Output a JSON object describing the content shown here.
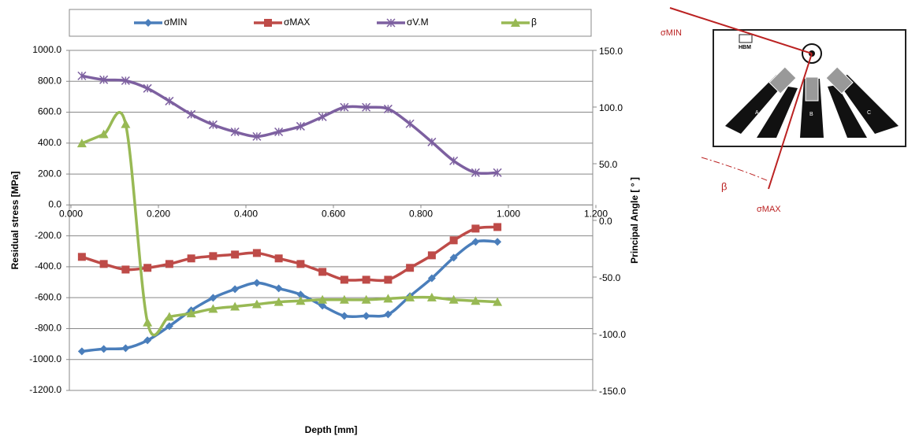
{
  "chart_data": {
    "type": "line",
    "ylabel": "Residual stress [MPa]",
    "y2label": "Principal Angle [ ° ]",
    "xlabel": "Depth [mm]",
    "x": [
      0.025,
      0.075,
      0.125,
      0.175,
      0.225,
      0.275,
      0.325,
      0.375,
      0.425,
      0.475,
      0.525,
      0.575,
      0.625,
      0.675,
      0.725,
      0.775,
      0.825,
      0.875,
      0.925,
      0.975
    ],
    "series": [
      {
        "name": "σMIN",
        "color": "#4a7ebb",
        "marker": "diamond",
        "values": [
          -947,
          -932,
          -927,
          -876,
          -784,
          -682,
          -601,
          -545,
          -504,
          -540,
          -580,
          -652,
          -718,
          -718,
          -708,
          -590,
          -474,
          -341,
          -239,
          -239
        ]
      },
      {
        "name": "σMAX",
        "color": "#be4b48",
        "marker": "square",
        "values": [
          -336,
          -382,
          -418,
          -407,
          -382,
          -346,
          -331,
          -321,
          -311,
          -346,
          -382,
          -433,
          -484,
          -484,
          -484,
          -407,
          -326,
          -229,
          -153,
          -143
        ]
      },
      {
        "name": "σV.M",
        "color": "#7d60a0",
        "marker": "cross",
        "values": [
          835,
          810,
          804,
          754,
          672,
          586,
          519,
          473,
          443,
          473,
          509,
          570,
          632,
          632,
          621,
          525,
          407,
          285,
          209,
          209
        ]
      },
      {
        "name": "β",
        "color": "#98b954",
        "marker": "triangle",
        "axis": "y2",
        "values": [
          68,
          76,
          85,
          -90,
          -85,
          -82,
          -78,
          -76,
          -74,
          -72,
          -71,
          -70,
          -70,
          -70,
          -69,
          -68,
          -68,
          -70,
          -71,
          -72
        ]
      }
    ],
    "xlim": [
      0,
      1.2
    ],
    "xticks": [
      {
        "value": 0,
        "label": "0.000"
      },
      {
        "value": 0.2,
        "label": "0.200"
      },
      {
        "value": 0.4,
        "label": "0.400"
      },
      {
        "value": 0.6,
        "label": "0.600"
      },
      {
        "value": 0.8,
        "label": "0.800"
      },
      {
        "value": 1,
        "label": "1.000"
      },
      {
        "value": 1.2,
        "label": "1.200"
      }
    ],
    "ylim": [
      -1200,
      1000
    ],
    "yticks": [
      {
        "value": 1000,
        "label": "1000.0"
      },
      {
        "value": 800,
        "label": "800.0"
      },
      {
        "value": 600,
        "label": "600.0"
      },
      {
        "value": 400,
        "label": "400.0"
      },
      {
        "value": 200,
        "label": "200.0"
      },
      {
        "value": 0,
        "label": "0.0"
      },
      {
        "value": -200,
        "label": "-200.0"
      },
      {
        "value": -400,
        "label": "-400.0"
      },
      {
        "value": -600,
        "label": "-600.0"
      },
      {
        "value": -800,
        "label": "-800.0"
      },
      {
        "value": -1000,
        "label": "-1000.0"
      },
      {
        "value": -1200,
        "label": "-1200.0"
      }
    ],
    "y2lim": [
      -150,
      150
    ],
    "y2ticks": [
      {
        "value": 150,
        "label": "150.0"
      },
      {
        "value": 100,
        "label": "100.0"
      },
      {
        "value": 50,
        "label": "50.0"
      },
      {
        "value": 0,
        "label": "0.0"
      },
      {
        "value": -50,
        "label": "-50.0"
      },
      {
        "value": -100,
        "label": "-100.0"
      },
      {
        "value": -150,
        "label": "-150.0"
      }
    ],
    "grid": true,
    "legend": "top"
  },
  "diagram": {
    "sigma_min": "σMIN",
    "sigma_max": "σMAX",
    "beta": "β",
    "brand": "HBM",
    "grids": [
      "A",
      "B",
      "C"
    ]
  }
}
